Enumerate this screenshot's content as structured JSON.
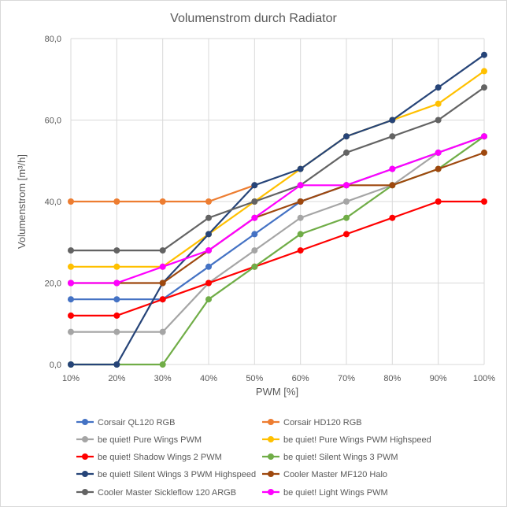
{
  "chart_data": {
    "type": "line",
    "title": "Volumenstrom durch Radiator",
    "xlabel": "PWM  [%]",
    "ylabel": "Volumenstrom  [m³/h]",
    "categories": [
      "10%",
      "20%",
      "30%",
      "40%",
      "50%",
      "60%",
      "70%",
      "80%",
      "90%",
      "100%"
    ],
    "ylim": [
      0,
      80
    ],
    "yticks": [
      0,
      20,
      40,
      60,
      80
    ],
    "ytick_labels": [
      "0,0",
      "20,0",
      "40,0",
      "60,0",
      "80,0"
    ],
    "grid": true,
    "legend_position": "bottom",
    "series": [
      {
        "name": "Corsair QL120 RGB",
        "color": "#4472C4",
        "values": [
          16,
          16,
          16,
          24,
          32,
          40,
          44,
          48,
          52,
          56
        ]
      },
      {
        "name": "Corsair HD120 RGB",
        "color": "#ED7D31",
        "values": [
          40,
          40,
          40,
          40,
          44,
          null,
          null,
          null,
          null,
          null
        ]
      },
      {
        "name": "be quiet! Pure Wings PWM",
        "color": "#A5A5A5",
        "values": [
          8,
          8,
          8,
          20,
          28,
          36,
          40,
          44,
          52,
          56
        ]
      },
      {
        "name": "be quiet! Pure Wings PWM Highspeed",
        "color": "#FFC000",
        "values": [
          24,
          24,
          24,
          32,
          40,
          48,
          56,
          60,
          64,
          72
        ]
      },
      {
        "name": "be quiet! Shadow Wings 2 PWM",
        "color": "#FF0000",
        "values": [
          12,
          12,
          16,
          20,
          24,
          28,
          32,
          36,
          40,
          40
        ]
      },
      {
        "name": "be quiet! Silent Wings 3 PWM",
        "color": "#70AD47",
        "values": [
          0,
          0,
          0,
          16,
          24,
          32,
          36,
          44,
          48,
          56
        ]
      },
      {
        "name": "be quiet! Silent Wings 3 PWM Highspeed",
        "color": "#264478",
        "values": [
          0,
          0,
          20,
          32,
          44,
          48,
          56,
          60,
          68,
          76
        ]
      },
      {
        "name": "Cooler Master MF120 Halo",
        "color": "#9E480E",
        "values": [
          20,
          20,
          20,
          28,
          36,
          40,
          44,
          44,
          48,
          52
        ]
      },
      {
        "name": "Cooler Master Sickleflow 120 ARGB",
        "color": "#636363",
        "values": [
          28,
          28,
          28,
          36,
          40,
          44,
          52,
          56,
          60,
          68
        ]
      },
      {
        "name": "be quiet! Light Wings PWM",
        "color": "#FF00FF",
        "values": [
          20,
          20,
          24,
          28,
          36,
          44,
          44,
          48,
          52,
          56
        ]
      }
    ]
  }
}
